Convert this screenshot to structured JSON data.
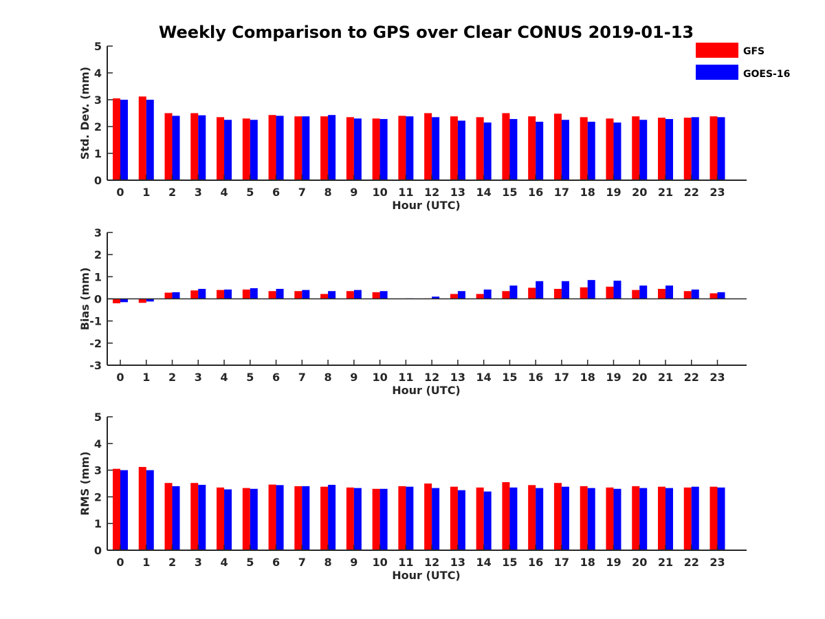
{
  "title": "Weekly Comparison to GPS over Clear CONUS 2019-01-13",
  "colors": {
    "gfs": "#ff0000",
    "goes": "#0000ff",
    "axis": "#262626"
  },
  "legend": {
    "gfs_label": "GFS",
    "goes_label": "GOES-16",
    "position": "top-right"
  },
  "chart_data": [
    {
      "type": "bar",
      "ylabel": "Std. Dev. (mm)",
      "xlabel": "Hour (UTC)",
      "ylim": [
        0,
        5
      ],
      "yticks": [
        0,
        1,
        2,
        3,
        4,
        5
      ],
      "categories": [
        "0",
        "1",
        "2",
        "3",
        "4",
        "5",
        "6",
        "7",
        "8",
        "9",
        "10",
        "11",
        "12",
        "13",
        "14",
        "15",
        "16",
        "17",
        "18",
        "19",
        "20",
        "21",
        "22",
        "23"
      ],
      "series": [
        {
          "name": "GFS",
          "values": [
            3.05,
            3.12,
            2.5,
            2.5,
            2.35,
            2.3,
            2.43,
            2.38,
            2.38,
            2.35,
            2.3,
            2.4,
            2.5,
            2.38,
            2.35,
            2.5,
            2.38,
            2.48,
            2.35,
            2.3,
            2.38,
            2.33,
            2.33,
            2.38
          ]
        },
        {
          "name": "GOES-16",
          "values": [
            3.0,
            3.0,
            2.4,
            2.42,
            2.25,
            2.25,
            2.4,
            2.38,
            2.43,
            2.3,
            2.28,
            2.38,
            2.35,
            2.22,
            2.15,
            2.28,
            2.18,
            2.25,
            2.18,
            2.15,
            2.25,
            2.28,
            2.35,
            2.35
          ]
        }
      ]
    },
    {
      "type": "bar",
      "ylabel": "Bias (mm)",
      "xlabel": "Hour (UTC)",
      "ylim": [
        -3,
        3
      ],
      "yticks": [
        -3,
        -2,
        -1,
        0,
        1,
        2,
        3
      ],
      "categories": [
        "0",
        "1",
        "2",
        "3",
        "4",
        "5",
        "6",
        "7",
        "8",
        "9",
        "10",
        "11",
        "12",
        "13",
        "14",
        "15",
        "16",
        "17",
        "18",
        "19",
        "20",
        "21",
        "22",
        "23"
      ],
      "series": [
        {
          "name": "GFS",
          "values": [
            -0.2,
            -0.18,
            0.28,
            0.38,
            0.4,
            0.42,
            0.35,
            0.35,
            0.22,
            0.35,
            0.3,
            0.0,
            0.02,
            0.22,
            0.22,
            0.35,
            0.5,
            0.45,
            0.52,
            0.55,
            0.4,
            0.45,
            0.35,
            0.25
          ]
        },
        {
          "name": "GOES-16",
          "values": [
            -0.15,
            -0.12,
            0.3,
            0.45,
            0.42,
            0.48,
            0.45,
            0.4,
            0.35,
            0.4,
            0.35,
            0.02,
            0.1,
            0.35,
            0.42,
            0.6,
            0.8,
            0.8,
            0.85,
            0.82,
            0.6,
            0.6,
            0.42,
            0.3
          ]
        }
      ]
    },
    {
      "type": "bar",
      "ylabel": "RMS (mm)",
      "xlabel": "Hour (UTC)",
      "ylim": [
        0,
        5
      ],
      "yticks": [
        0,
        1,
        2,
        3,
        4,
        5
      ],
      "categories": [
        "0",
        "1",
        "2",
        "3",
        "4",
        "5",
        "6",
        "7",
        "8",
        "9",
        "10",
        "11",
        "12",
        "13",
        "14",
        "15",
        "16",
        "17",
        "18",
        "19",
        "20",
        "21",
        "22",
        "23"
      ],
      "series": [
        {
          "name": "GFS",
          "values": [
            3.05,
            3.12,
            2.52,
            2.52,
            2.35,
            2.33,
            2.46,
            2.4,
            2.38,
            2.35,
            2.3,
            2.4,
            2.5,
            2.38,
            2.35,
            2.55,
            2.44,
            2.52,
            2.4,
            2.35,
            2.4,
            2.38,
            2.35,
            2.38
          ]
        },
        {
          "name": "GOES-16",
          "values": [
            3.0,
            3.0,
            2.4,
            2.45,
            2.28,
            2.3,
            2.44,
            2.4,
            2.45,
            2.33,
            2.3,
            2.38,
            2.33,
            2.25,
            2.2,
            2.35,
            2.33,
            2.38,
            2.33,
            2.3,
            2.33,
            2.33,
            2.38,
            2.35
          ]
        }
      ]
    }
  ]
}
